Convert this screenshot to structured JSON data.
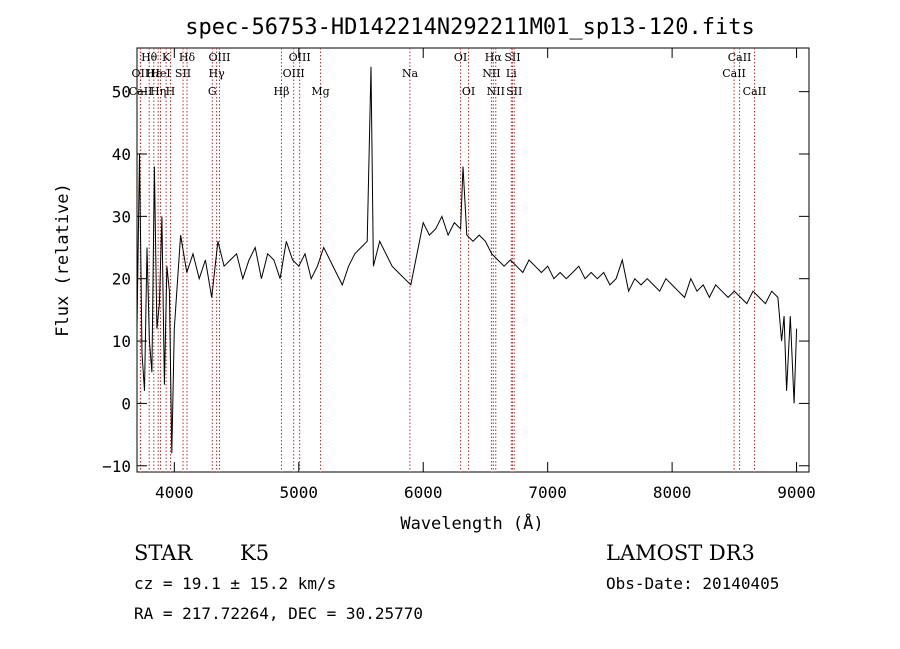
{
  "chart_data": {
    "type": "line",
    "title": "spec-56753-HD142214N292211M01_sp13-120.fits",
    "xlabel": "Wavelength (Å)",
    "ylabel": "Flux (relative)",
    "xlim": [
      3700,
      9100
    ],
    "ylim": [
      -11,
      57
    ],
    "xticks": [
      4000,
      5000,
      6000,
      7000,
      8000,
      9000
    ],
    "yticks": [
      -10,
      0,
      10,
      20,
      30,
      40,
      50
    ],
    "series": [
      {
        "line_color": "#000000",
        "x": [
          3700,
          3720,
          3740,
          3760,
          3780,
          3800,
          3820,
          3840,
          3860,
          3880,
          3900,
          3920,
          3940,
          3960,
          3980,
          4000,
          4050,
          4100,
          4150,
          4200,
          4250,
          4300,
          4350,
          4400,
          4450,
          4500,
          4550,
          4600,
          4650,
          4700,
          4750,
          4800,
          4850,
          4900,
          4950,
          5000,
          5050,
          5100,
          5150,
          5200,
          5250,
          5300,
          5350,
          5400,
          5450,
          5500,
          5550,
          5580,
          5600,
          5650,
          5700,
          5750,
          5800,
          5850,
          5900,
          5950,
          6000,
          6050,
          6100,
          6150,
          6200,
          6250,
          6300,
          6320,
          6350,
          6400,
          6450,
          6500,
          6550,
          6600,
          6650,
          6700,
          6750,
          6800,
          6850,
          6900,
          6950,
          7000,
          7050,
          7100,
          7150,
          7200,
          7250,
          7300,
          7350,
          7400,
          7450,
          7500,
          7550,
          7600,
          7650,
          7700,
          7750,
          7800,
          7850,
          7900,
          7950,
          8000,
          8050,
          8100,
          8150,
          8200,
          8250,
          8300,
          8350,
          8400,
          8450,
          8500,
          8550,
          8600,
          8650,
          8700,
          8750,
          8800,
          8850,
          8880,
          8900,
          8920,
          8950,
          8980,
          9000
        ],
        "y": [
          12,
          40,
          8,
          2,
          25,
          10,
          5,
          38,
          12,
          16,
          30,
          3,
          22,
          18,
          -8,
          12,
          27,
          21,
          24,
          20,
          23,
          17,
          26,
          22,
          23,
          24,
          20,
          23,
          25,
          20,
          24,
          23,
          20,
          26,
          23,
          22,
          24,
          20,
          22,
          25,
          23,
          21,
          19,
          22,
          24,
          25,
          26,
          54,
          22,
          26,
          24,
          22,
          21,
          20,
          19,
          24,
          29,
          27,
          28,
          30,
          27,
          29,
          28,
          38,
          27,
          26,
          27,
          26,
          24,
          23,
          22,
          23,
          22,
          21,
          23,
          22,
          21,
          22,
          20,
          21,
          20,
          21,
          22,
          20,
          21,
          20,
          21,
          19,
          20,
          23,
          18,
          20,
          19,
          20,
          19,
          18,
          20,
          19,
          18,
          17,
          20,
          18,
          19,
          17,
          19,
          18,
          17,
          18,
          17,
          16,
          18,
          17,
          16,
          18,
          17,
          10,
          14,
          2,
          14,
          0,
          12
        ]
      }
    ],
    "lines": [
      {
        "label": "Hθ",
        "x": 3798,
        "row": 0
      },
      {
        "label": "OII",
        "x": 3727,
        "row": 1
      },
      {
        "label": "CaII",
        "x": 3729,
        "row": 2
      },
      {
        "label": "Hε",
        "x": 3835,
        "row": 1
      },
      {
        "label": "Hη",
        "x": 3870,
        "row": 2
      },
      {
        "label": "K",
        "x": 3934,
        "row": 0
      },
      {
        "label": "HeI",
        "x": 3889,
        "row": 1
      },
      {
        "label": "H",
        "x": 3969,
        "row": 2
      },
      {
        "label": "SII",
        "x": 4070,
        "row": 1
      },
      {
        "label": "Hδ",
        "x": 4102,
        "row": 0
      },
      {
        "label": "OIII",
        "x": 4363,
        "row": 0
      },
      {
        "label": "Hγ",
        "x": 4340,
        "row": 1
      },
      {
        "label": "G",
        "x": 4305,
        "row": 2
      },
      {
        "label": "Hβ",
        "x": 4861,
        "row": 2
      },
      {
        "label": "OIII",
        "x": 5007,
        "row": 0
      },
      {
        "label": "OIII",
        "x": 4959,
        "row": 1
      },
      {
        "label": "Mg",
        "x": 5175,
        "row": 2
      },
      {
        "label": "Na",
        "x": 5893,
        "row": 1
      },
      {
        "label": "OI",
        "x": 6300,
        "row": 0
      },
      {
        "label": "OI",
        "x": 6364,
        "row": 2
      },
      {
        "label": "Hα",
        "x": 6563,
        "row": 0
      },
      {
        "label": "NII",
        "x": 6548,
        "row": 1
      },
      {
        "label": "NII",
        "x": 6583,
        "row": 2
      },
      {
        "label": "SII",
        "x": 6717,
        "row": 0
      },
      {
        "label": "Li",
        "x": 6708,
        "row": 1
      },
      {
        "label": "SII",
        "x": 6731,
        "row": 2
      },
      {
        "label": "CaII",
        "x": 8542,
        "row": 0
      },
      {
        "label": "CaII",
        "x": 8498,
        "row": 1
      },
      {
        "label": "CaII",
        "x": 8662,
        "row": 2
      }
    ],
    "grid": false,
    "legend": "none"
  },
  "info": {
    "class": "STAR",
    "subclass": "K5",
    "cz": "cz = 19.1 ± 15.2 km/s",
    "coords": "RA = 217.72264, DEC =  30.25770",
    "survey": "LAMOST DR3",
    "obs_date": "Obs-Date: 20140405"
  },
  "colors": {
    "spectrum": "#000000",
    "line_markers": "#b03030",
    "axes": "#000000"
  }
}
